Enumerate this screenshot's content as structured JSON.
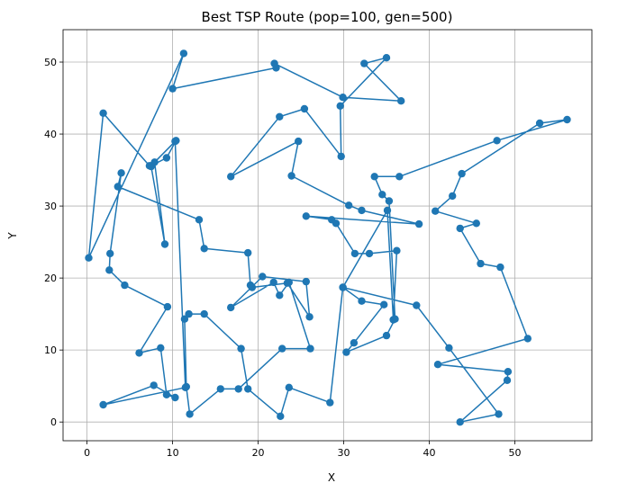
{
  "chart_data": {
    "type": "line",
    "title": "Best TSP Route (pop=100, gen=500)",
    "xlabel": "X",
    "ylabel": "Y",
    "xlim": [
      -2.8,
      59.0
    ],
    "ylim": [
      -2.6,
      54.5
    ],
    "xticks": [
      0,
      10,
      20,
      30,
      40,
      50
    ],
    "yticks": [
      0,
      10,
      20,
      30,
      40,
      50
    ],
    "grid": true,
    "color": "#1f77b4",
    "series": [
      {
        "x": [
          11.3,
          10.0,
          22.1,
          21.9,
          29.9,
          36.7,
          32.4,
          35.0,
          29.6,
          29.7,
          25.4,
          22.5,
          16.8,
          24.7,
          23.9,
          30.6,
          32.1,
          38.8,
          25.6,
          28.6,
          29.1,
          31.3,
          33.0,
          36.2,
          35.8,
          35.1,
          29.9,
          32.1,
          34.7,
          31.2,
          30.3,
          35.0,
          36.0,
          35.3,
          34.5,
          33.6,
          36.5,
          47.9,
          56.1,
          52.9,
          43.8,
          42.7,
          40.7,
          45.5,
          43.6,
          46.0,
          48.3,
          51.5,
          41.0,
          49.2,
          49.1,
          43.6,
          48.1,
          42.3,
          38.5,
          29.9,
          28.4,
          23.6,
          22.6,
          18.8,
          18.0,
          13.7,
          11.9,
          11.4,
          11.6,
          12.0,
          15.6,
          17.7,
          22.8,
          26.1,
          23.6,
          22.5,
          21.8,
          16.8,
          20.5,
          25.6,
          26.0,
          23.4,
          19.3,
          19.1,
          18.8,
          13.7,
          13.1,
          3.6,
          4.0,
          2.7,
          2.6,
          4.4,
          9.4,
          6.1,
          8.6,
          9.3,
          10.3,
          7.8,
          1.9,
          11.5,
          10.3,
          7.5,
          9.3,
          10.4,
          7.9,
          9.1,
          7.5,
          7.3,
          1.9,
          0.2
        ],
        "y": [
          51.2,
          46.3,
          49.2,
          49.8,
          45.1,
          44.6,
          49.8,
          50.6,
          43.9,
          36.9,
          43.5,
          42.4,
          34.1,
          39.0,
          34.2,
          30.1,
          29.4,
          27.5,
          28.6,
          28.1,
          27.6,
          23.4,
          23.4,
          23.8,
          14.2,
          29.4,
          18.7,
          16.8,
          16.3,
          11.0,
          9.7,
          12.0,
          14.3,
          30.7,
          31.6,
          34.1,
          34.1,
          39.1,
          42.0,
          41.5,
          34.5,
          31.4,
          29.3,
          27.6,
          26.9,
          22.0,
          21.5,
          11.6,
          8.0,
          7.0,
          5.8,
          0.0,
          1.1,
          10.3,
          16.2,
          18.7,
          2.7,
          4.8,
          0.8,
          4.6,
          10.2,
          15.0,
          15.0,
          14.3,
          4.9,
          1.1,
          4.6,
          4.6,
          10.2,
          10.2,
          19.4,
          17.6,
          19.4,
          15.9,
          20.2,
          19.5,
          14.6,
          19.3,
          18.7,
          19.0,
          23.5,
          24.1,
          28.1,
          32.7,
          34.6,
          23.4,
          21.1,
          19.0,
          16.0,
          9.6,
          10.3,
          3.8,
          3.4,
          5.1,
          2.4,
          4.8,
          39.0,
          35.6,
          36.7,
          39.1,
          36.1,
          24.7,
          35.5,
          35.6,
          42.9,
          22.8
        ]
      }
    ]
  }
}
